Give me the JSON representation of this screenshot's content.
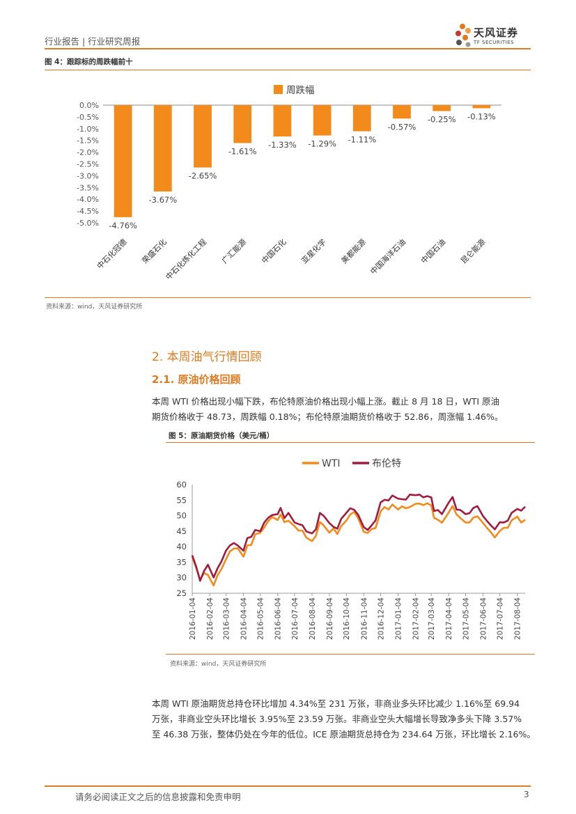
{
  "header": {
    "left_text": "行业报告 | 行业研究周报",
    "logo_name": "天风证券",
    "logo_sub": "TF SECURITIES"
  },
  "figure4": {
    "title": "图 4：跟踪标的周跌幅前十",
    "source": "资料来源：wind，天风证券研究所"
  },
  "section": {
    "h2": "2. 本周油气行情回顾",
    "h3": "2.1. 原油价格回顾",
    "para1_line1": "本周 WTI 价格出现小幅下跌，布伦特原油价格出现小幅上涨。截止 8 月 18 日，WTI 原油",
    "para1_line2": "期货价格收于 48.73，周跌幅 0.18%；布伦特原油期货价格收于 52.86，周涨幅 1.46%。"
  },
  "figure5": {
    "title": "图 5：原油期货价格（美元/桶）",
    "source": "资料来源：wind，天风证券研究所"
  },
  "para2": {
    "line1": "本周 WTI 原油期货总持仓环比增加 4.34%至 231 万张，非商业多头环比减少 1.16%至 69.94",
    "line2": "万张，非商业空头环比增长 3.95%至 23.59 万张。非商业空头大幅增长导致净多头下降 3.57%",
    "line3": "至 46.38 万张，整体仍处在今年的低位。ICE 原油期货总持仓为 234.64 万张，环比增长 2.16%。"
  },
  "footer": {
    "text": "请务必阅读正文之后的信息披露和免责申明",
    "page": "3"
  },
  "colors": {
    "accent": "#E07A1F",
    "bar": "#F28A1C",
    "wti": "#F28A1C",
    "brent": "#A01B3C"
  },
  "chart_data": [
    {
      "type": "bar",
      "legend": [
        "周跌幅"
      ],
      "legend_position": "top-center",
      "categories": [
        "中石化冠德",
        "荣盛石化",
        "中石化炼化工程",
        "广汇能源",
        "中国石化",
        "亚星化学",
        "美都能源",
        "中国海洋石油",
        "中国石油",
        "昆仑能源"
      ],
      "series": [
        {
          "name": "周跌幅",
          "values": [
            -4.76,
            -3.67,
            -2.65,
            -1.61,
            -1.33,
            -1.29,
            -1.11,
            -0.57,
            -0.25,
            -0.13
          ]
        }
      ],
      "data_labels": [
        "-4.76%",
        "-3.67%",
        "-2.65%",
        "-1.61%",
        "-1.33%",
        "-1.29%",
        "-1.11%",
        "-0.57%",
        "-0.25%",
        "-0.13%"
      ],
      "y_ticks": [
        "0.0%",
        "-0.5%",
        "-1.0%",
        "-1.5%",
        "-2.0%",
        "-2.5%",
        "-3.0%",
        "-3.5%",
        "-4.0%",
        "-4.5%",
        "-5.0%"
      ],
      "ylim": [
        -5.0,
        0.0
      ],
      "grid": false
    },
    {
      "type": "line",
      "legend": [
        "WTI",
        "布伦特"
      ],
      "legend_position": "top-center",
      "x_ticks": [
        "2016-01-04",
        "2016-02-04",
        "2016-03-04",
        "2016-04-04",
        "2016-05-04",
        "2016-06-04",
        "2016-07-04",
        "2016-08-04",
        "2016-09-04",
        "2016-10-04",
        "2016-11-04",
        "2016-12-04",
        "2017-01-04",
        "2017-02-04",
        "2017-03-04",
        "2017-04-04",
        "2017-05-04",
        "2017-06-04",
        "2017-07-04",
        "2017-08-04"
      ],
      "y_ticks": [
        "60",
        "55",
        "50",
        "45",
        "40",
        "35",
        "30",
        "25"
      ],
      "ylim": [
        25,
        60
      ],
      "grid": false,
      "series": [
        {
          "name": "WTI",
          "x": [
            "2016-01-04",
            "2016-01-11",
            "2016-01-18",
            "2016-01-25",
            "2016-02-01",
            "2016-02-11",
            "2016-02-18",
            "2016-02-25",
            "2016-03-04",
            "2016-03-11",
            "2016-03-18",
            "2016-03-25",
            "2016-04-04",
            "2016-04-11",
            "2016-04-18",
            "2016-04-25",
            "2016-05-04",
            "2016-05-11",
            "2016-05-18",
            "2016-05-25",
            "2016-06-04",
            "2016-06-09",
            "2016-06-16",
            "2016-06-23",
            "2016-07-04",
            "2016-07-11",
            "2016-07-18",
            "2016-07-25",
            "2016-08-04",
            "2016-08-11",
            "2016-08-18",
            "2016-08-25",
            "2016-09-04",
            "2016-09-11",
            "2016-09-18",
            "2016-09-25",
            "2016-10-04",
            "2016-10-11",
            "2016-10-18",
            "2016-10-25",
            "2016-11-04",
            "2016-11-11",
            "2016-11-18",
            "2016-11-25",
            "2016-12-04",
            "2016-12-11",
            "2016-12-18",
            "2016-12-25",
            "2017-01-04",
            "2017-01-11",
            "2017-01-18",
            "2017-01-25",
            "2017-02-04",
            "2017-02-11",
            "2017-02-18",
            "2017-02-25",
            "2017-03-04",
            "2017-03-09",
            "2017-03-16",
            "2017-03-23",
            "2017-04-04",
            "2017-04-11",
            "2017-04-18",
            "2017-04-25",
            "2017-05-04",
            "2017-05-11",
            "2017-05-18",
            "2017-05-25",
            "2017-06-04",
            "2017-06-11",
            "2017-06-18",
            "2017-06-25",
            "2017-07-04",
            "2017-07-11",
            "2017-07-18",
            "2017-07-25",
            "2017-08-04",
            "2017-08-11",
            "2017-08-18"
          ],
          "values": [
            36.8,
            33.2,
            29.4,
            31.5,
            30.9,
            27.5,
            30.8,
            32.8,
            35.9,
            38.5,
            39.4,
            39.5,
            36.8,
            40.4,
            40.6,
            44.0,
            44.5,
            46.2,
            48.2,
            49.6,
            48.6,
            50.4,
            47.9,
            48.4,
            46.6,
            45.2,
            45.2,
            42.9,
            41.8,
            43.5,
            48.0,
            46.8,
            44.5,
            45.9,
            44.1,
            46.7,
            48.4,
            50.4,
            51.2,
            49.2,
            44.8,
            44.4,
            45.7,
            46.0,
            51.4,
            52.8,
            52.0,
            53.6,
            52.0,
            53.0,
            52.4,
            52.8,
            53.8,
            53.9,
            53.4,
            54.0,
            53.3,
            49.3,
            48.7,
            47.7,
            51.0,
            53.1,
            50.4,
            49.2,
            47.8,
            47.8,
            49.4,
            49.8,
            47.7,
            46.1,
            44.7,
            43.0,
            45.1,
            46.1,
            46.1,
            48.5,
            49.7,
            47.8,
            48.7
          ]
        },
        {
          "name": "布伦特",
          "x": [
            "2016-01-04",
            "2016-01-11",
            "2016-01-18",
            "2016-01-25",
            "2016-02-01",
            "2016-02-11",
            "2016-02-18",
            "2016-02-25",
            "2016-03-04",
            "2016-03-11",
            "2016-03-18",
            "2016-03-25",
            "2016-04-04",
            "2016-04-11",
            "2016-04-18",
            "2016-04-25",
            "2016-05-04",
            "2016-05-11",
            "2016-05-18",
            "2016-05-25",
            "2016-06-04",
            "2016-06-09",
            "2016-06-16",
            "2016-06-23",
            "2016-07-04",
            "2016-07-11",
            "2016-07-18",
            "2016-07-25",
            "2016-08-04",
            "2016-08-11",
            "2016-08-18",
            "2016-08-25",
            "2016-09-04",
            "2016-09-11",
            "2016-09-18",
            "2016-09-25",
            "2016-10-04",
            "2016-10-11",
            "2016-10-18",
            "2016-10-25",
            "2016-11-04",
            "2016-11-11",
            "2016-11-18",
            "2016-11-25",
            "2016-12-04",
            "2016-12-11",
            "2016-12-18",
            "2016-12-25",
            "2017-01-04",
            "2017-01-11",
            "2017-01-18",
            "2017-01-25",
            "2017-02-04",
            "2017-02-11",
            "2017-02-18",
            "2017-02-25",
            "2017-03-04",
            "2017-03-09",
            "2017-03-16",
            "2017-03-23",
            "2017-04-04",
            "2017-04-11",
            "2017-04-18",
            "2017-04-25",
            "2017-05-04",
            "2017-05-11",
            "2017-05-18",
            "2017-05-25",
            "2017-06-04",
            "2017-06-11",
            "2017-06-18",
            "2017-06-25",
            "2017-07-04",
            "2017-07-11",
            "2017-07-18",
            "2017-07-25",
            "2017-08-04",
            "2017-08-11",
            "2017-08-18"
          ],
          "values": [
            37.2,
            33.6,
            29.0,
            32.2,
            34.2,
            30.1,
            33.0,
            35.3,
            38.7,
            40.4,
            41.2,
            40.4,
            38.7,
            42.8,
            43.2,
            45.4,
            45.0,
            47.8,
            49.3,
            50.2,
            50.5,
            52.5,
            49.2,
            50.9,
            47.8,
            47.3,
            46.9,
            44.9,
            44.3,
            45.6,
            50.9,
            49.9,
            47.6,
            46.4,
            45.8,
            49.0,
            50.9,
            52.4,
            51.9,
            50.3,
            46.3,
            45.4,
            46.9,
            48.5,
            54.3,
            55.1,
            54.9,
            56.5,
            55.5,
            55.3,
            55.2,
            56.8,
            56.6,
            56.8,
            55.9,
            56.3,
            55.9,
            51.5,
            51.8,
            50.5,
            54.2,
            56.0,
            52.0,
            51.8,
            50.5,
            50.8,
            52.5,
            53.1,
            49.9,
            48.3,
            46.9,
            45.6,
            47.9,
            47.8,
            48.4,
            50.9,
            52.2,
            51.6,
            52.9
          ]
        }
      ]
    }
  ]
}
